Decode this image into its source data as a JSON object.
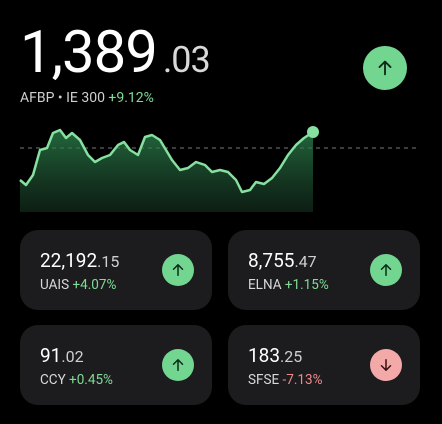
{
  "header": {
    "price_main": "1,389",
    "price_decimal": ".03",
    "ticker": "AFBP • IE 300",
    "change": "+9.12%"
  },
  "cards": [
    {
      "price_main": "22,192",
      "price_decimal": ".15",
      "ticker": "UAIS",
      "change": "+4.07%"
    },
    {
      "price_main": "8,755",
      "price_decimal": ".47",
      "ticker": "ELNA",
      "change": "+1.15%"
    },
    {
      "price_main": "91",
      "price_decimal": ".02",
      "ticker": "CCY",
      "change": "+0.45%"
    },
    {
      "price_main": "183",
      "price_decimal": ".25",
      "ticker": "SFSE",
      "change": "-7.13%"
    }
  ]
}
